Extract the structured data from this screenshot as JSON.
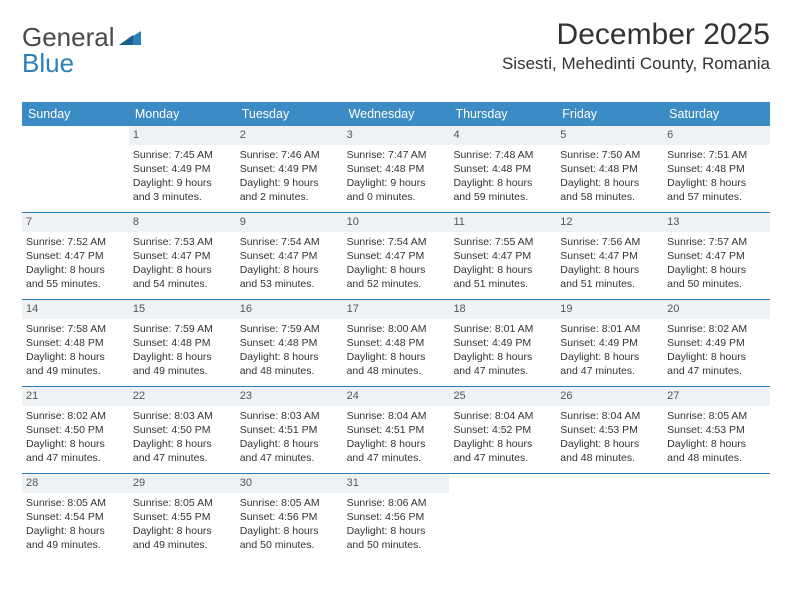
{
  "logo": {
    "word1": "General",
    "word2": "Blue"
  },
  "title": "December 2025",
  "location": "Sisesti, Mehedinti County, Romania",
  "day_names": [
    "Sunday",
    "Monday",
    "Tuesday",
    "Wednesday",
    "Thursday",
    "Friday",
    "Saturday"
  ],
  "colors": {
    "header_bg": "#3b8bc4",
    "rule": "#2c7fb8",
    "daynum_bg": "#eef2f5",
    "text": "#333333",
    "logo_blue": "#2c7fb8"
  },
  "weeks": [
    [
      {
        "n": "",
        "sr": "",
        "ss": "",
        "dl1": "",
        "dl2": ""
      },
      {
        "n": "1",
        "sr": "Sunrise: 7:45 AM",
        "ss": "Sunset: 4:49 PM",
        "dl1": "Daylight: 9 hours",
        "dl2": "and 3 minutes."
      },
      {
        "n": "2",
        "sr": "Sunrise: 7:46 AM",
        "ss": "Sunset: 4:49 PM",
        "dl1": "Daylight: 9 hours",
        "dl2": "and 2 minutes."
      },
      {
        "n": "3",
        "sr": "Sunrise: 7:47 AM",
        "ss": "Sunset: 4:48 PM",
        "dl1": "Daylight: 9 hours",
        "dl2": "and 0 minutes."
      },
      {
        "n": "4",
        "sr": "Sunrise: 7:48 AM",
        "ss": "Sunset: 4:48 PM",
        "dl1": "Daylight: 8 hours",
        "dl2": "and 59 minutes."
      },
      {
        "n": "5",
        "sr": "Sunrise: 7:50 AM",
        "ss": "Sunset: 4:48 PM",
        "dl1": "Daylight: 8 hours",
        "dl2": "and 58 minutes."
      },
      {
        "n": "6",
        "sr": "Sunrise: 7:51 AM",
        "ss": "Sunset: 4:48 PM",
        "dl1": "Daylight: 8 hours",
        "dl2": "and 57 minutes."
      }
    ],
    [
      {
        "n": "7",
        "sr": "Sunrise: 7:52 AM",
        "ss": "Sunset: 4:47 PM",
        "dl1": "Daylight: 8 hours",
        "dl2": "and 55 minutes."
      },
      {
        "n": "8",
        "sr": "Sunrise: 7:53 AM",
        "ss": "Sunset: 4:47 PM",
        "dl1": "Daylight: 8 hours",
        "dl2": "and 54 minutes."
      },
      {
        "n": "9",
        "sr": "Sunrise: 7:54 AM",
        "ss": "Sunset: 4:47 PM",
        "dl1": "Daylight: 8 hours",
        "dl2": "and 53 minutes."
      },
      {
        "n": "10",
        "sr": "Sunrise: 7:54 AM",
        "ss": "Sunset: 4:47 PM",
        "dl1": "Daylight: 8 hours",
        "dl2": "and 52 minutes."
      },
      {
        "n": "11",
        "sr": "Sunrise: 7:55 AM",
        "ss": "Sunset: 4:47 PM",
        "dl1": "Daylight: 8 hours",
        "dl2": "and 51 minutes."
      },
      {
        "n": "12",
        "sr": "Sunrise: 7:56 AM",
        "ss": "Sunset: 4:47 PM",
        "dl1": "Daylight: 8 hours",
        "dl2": "and 51 minutes."
      },
      {
        "n": "13",
        "sr": "Sunrise: 7:57 AM",
        "ss": "Sunset: 4:47 PM",
        "dl1": "Daylight: 8 hours",
        "dl2": "and 50 minutes."
      }
    ],
    [
      {
        "n": "14",
        "sr": "Sunrise: 7:58 AM",
        "ss": "Sunset: 4:48 PM",
        "dl1": "Daylight: 8 hours",
        "dl2": "and 49 minutes."
      },
      {
        "n": "15",
        "sr": "Sunrise: 7:59 AM",
        "ss": "Sunset: 4:48 PM",
        "dl1": "Daylight: 8 hours",
        "dl2": "and 49 minutes."
      },
      {
        "n": "16",
        "sr": "Sunrise: 7:59 AM",
        "ss": "Sunset: 4:48 PM",
        "dl1": "Daylight: 8 hours",
        "dl2": "and 48 minutes."
      },
      {
        "n": "17",
        "sr": "Sunrise: 8:00 AM",
        "ss": "Sunset: 4:48 PM",
        "dl1": "Daylight: 8 hours",
        "dl2": "and 48 minutes."
      },
      {
        "n": "18",
        "sr": "Sunrise: 8:01 AM",
        "ss": "Sunset: 4:49 PM",
        "dl1": "Daylight: 8 hours",
        "dl2": "and 47 minutes."
      },
      {
        "n": "19",
        "sr": "Sunrise: 8:01 AM",
        "ss": "Sunset: 4:49 PM",
        "dl1": "Daylight: 8 hours",
        "dl2": "and 47 minutes."
      },
      {
        "n": "20",
        "sr": "Sunrise: 8:02 AM",
        "ss": "Sunset: 4:49 PM",
        "dl1": "Daylight: 8 hours",
        "dl2": "and 47 minutes."
      }
    ],
    [
      {
        "n": "21",
        "sr": "Sunrise: 8:02 AM",
        "ss": "Sunset: 4:50 PM",
        "dl1": "Daylight: 8 hours",
        "dl2": "and 47 minutes."
      },
      {
        "n": "22",
        "sr": "Sunrise: 8:03 AM",
        "ss": "Sunset: 4:50 PM",
        "dl1": "Daylight: 8 hours",
        "dl2": "and 47 minutes."
      },
      {
        "n": "23",
        "sr": "Sunrise: 8:03 AM",
        "ss": "Sunset: 4:51 PM",
        "dl1": "Daylight: 8 hours",
        "dl2": "and 47 minutes."
      },
      {
        "n": "24",
        "sr": "Sunrise: 8:04 AM",
        "ss": "Sunset: 4:51 PM",
        "dl1": "Daylight: 8 hours",
        "dl2": "and 47 minutes."
      },
      {
        "n": "25",
        "sr": "Sunrise: 8:04 AM",
        "ss": "Sunset: 4:52 PM",
        "dl1": "Daylight: 8 hours",
        "dl2": "and 47 minutes."
      },
      {
        "n": "26",
        "sr": "Sunrise: 8:04 AM",
        "ss": "Sunset: 4:53 PM",
        "dl1": "Daylight: 8 hours",
        "dl2": "and 48 minutes."
      },
      {
        "n": "27",
        "sr": "Sunrise: 8:05 AM",
        "ss": "Sunset: 4:53 PM",
        "dl1": "Daylight: 8 hours",
        "dl2": "and 48 minutes."
      }
    ],
    [
      {
        "n": "28",
        "sr": "Sunrise: 8:05 AM",
        "ss": "Sunset: 4:54 PM",
        "dl1": "Daylight: 8 hours",
        "dl2": "and 49 minutes."
      },
      {
        "n": "29",
        "sr": "Sunrise: 8:05 AM",
        "ss": "Sunset: 4:55 PM",
        "dl1": "Daylight: 8 hours",
        "dl2": "and 49 minutes."
      },
      {
        "n": "30",
        "sr": "Sunrise: 8:05 AM",
        "ss": "Sunset: 4:56 PM",
        "dl1": "Daylight: 8 hours",
        "dl2": "and 50 minutes."
      },
      {
        "n": "31",
        "sr": "Sunrise: 8:06 AM",
        "ss": "Sunset: 4:56 PM",
        "dl1": "Daylight: 8 hours",
        "dl2": "and 50 minutes."
      },
      {
        "n": "",
        "sr": "",
        "ss": "",
        "dl1": "",
        "dl2": ""
      },
      {
        "n": "",
        "sr": "",
        "ss": "",
        "dl1": "",
        "dl2": ""
      },
      {
        "n": "",
        "sr": "",
        "ss": "",
        "dl1": "",
        "dl2": ""
      }
    ]
  ]
}
